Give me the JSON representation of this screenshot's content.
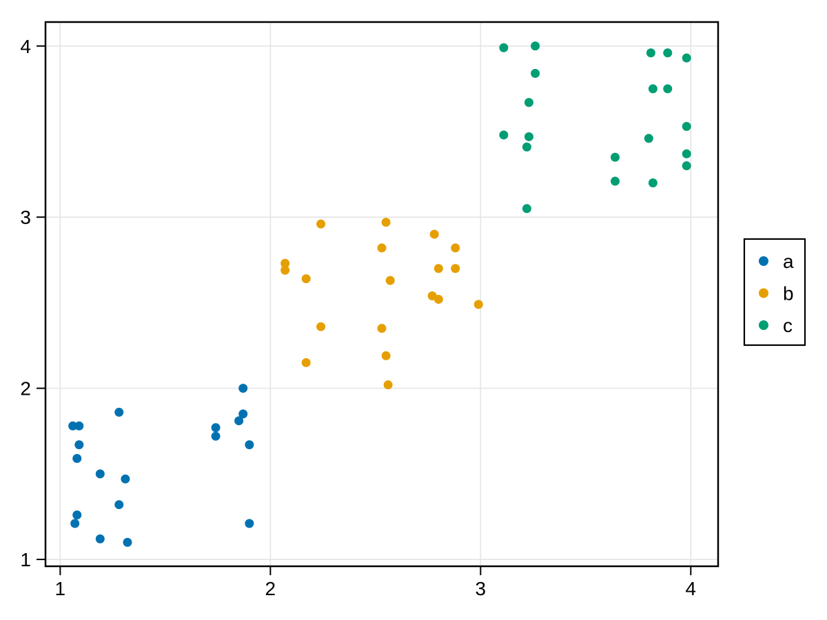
{
  "chart_data": {
    "type": "scatter",
    "title": "",
    "xlabel": "",
    "ylabel": "",
    "xlim": [
      0.93,
      4.13
    ],
    "ylim": [
      0.96,
      4.14
    ],
    "xticks": [
      1,
      2,
      3,
      4
    ],
    "yticks": [
      1,
      2,
      3,
      4
    ],
    "grid": true,
    "grid_color": "#e4e4e4",
    "axis_color": "#000000",
    "background_color": "#ffffff",
    "marker_radius": 6.5,
    "legend_position": "right-outside",
    "series": [
      {
        "name": "a",
        "color": "#0072B2",
        "points": [
          [
            1.06,
            1.78
          ],
          [
            1.09,
            1.78
          ],
          [
            1.09,
            1.67
          ],
          [
            1.08,
            1.59
          ],
          [
            1.08,
            1.26
          ],
          [
            1.07,
            1.21
          ],
          [
            1.19,
            1.5
          ],
          [
            1.19,
            1.12
          ],
          [
            1.28,
            1.86
          ],
          [
            1.28,
            1.32
          ],
          [
            1.31,
            1.47
          ],
          [
            1.32,
            1.1
          ],
          [
            1.74,
            1.77
          ],
          [
            1.74,
            1.72
          ],
          [
            1.85,
            1.81
          ],
          [
            1.87,
            1.85
          ],
          [
            1.87,
            2.0
          ],
          [
            1.9,
            1.67
          ],
          [
            1.9,
            1.21
          ]
        ]
      },
      {
        "name": "b",
        "color": "#E69F00",
        "points": [
          [
            2.24,
            2.96
          ],
          [
            2.55,
            2.97
          ],
          [
            2.78,
            2.9
          ],
          [
            2.53,
            2.82
          ],
          [
            2.88,
            2.82
          ],
          [
            2.07,
            2.73
          ],
          [
            2.07,
            2.69
          ],
          [
            2.8,
            2.7
          ],
          [
            2.88,
            2.7
          ],
          [
            2.17,
            2.64
          ],
          [
            2.57,
            2.63
          ],
          [
            2.77,
            2.54
          ],
          [
            2.8,
            2.52
          ],
          [
            2.99,
            2.49
          ],
          [
            2.24,
            2.36
          ],
          [
            2.53,
            2.35
          ],
          [
            2.55,
            2.19
          ],
          [
            2.17,
            2.15
          ],
          [
            2.56,
            2.02
          ]
        ]
      },
      {
        "name": "c",
        "color": "#009E73",
        "points": [
          [
            3.11,
            3.99
          ],
          [
            3.26,
            4.0
          ],
          [
            3.81,
            3.96
          ],
          [
            3.89,
            3.96
          ],
          [
            3.98,
            3.93
          ],
          [
            3.26,
            3.84
          ],
          [
            3.82,
            3.75
          ],
          [
            3.89,
            3.75
          ],
          [
            3.23,
            3.67
          ],
          [
            3.98,
            3.53
          ],
          [
            3.11,
            3.48
          ],
          [
            3.23,
            3.47
          ],
          [
            3.22,
            3.41
          ],
          [
            3.8,
            3.46
          ],
          [
            3.64,
            3.35
          ],
          [
            3.98,
            3.37
          ],
          [
            3.98,
            3.3
          ],
          [
            3.64,
            3.21
          ],
          [
            3.82,
            3.2
          ],
          [
            3.22,
            3.05
          ]
        ]
      }
    ],
    "legend_labels": [
      "a",
      "b",
      "c"
    ]
  }
}
